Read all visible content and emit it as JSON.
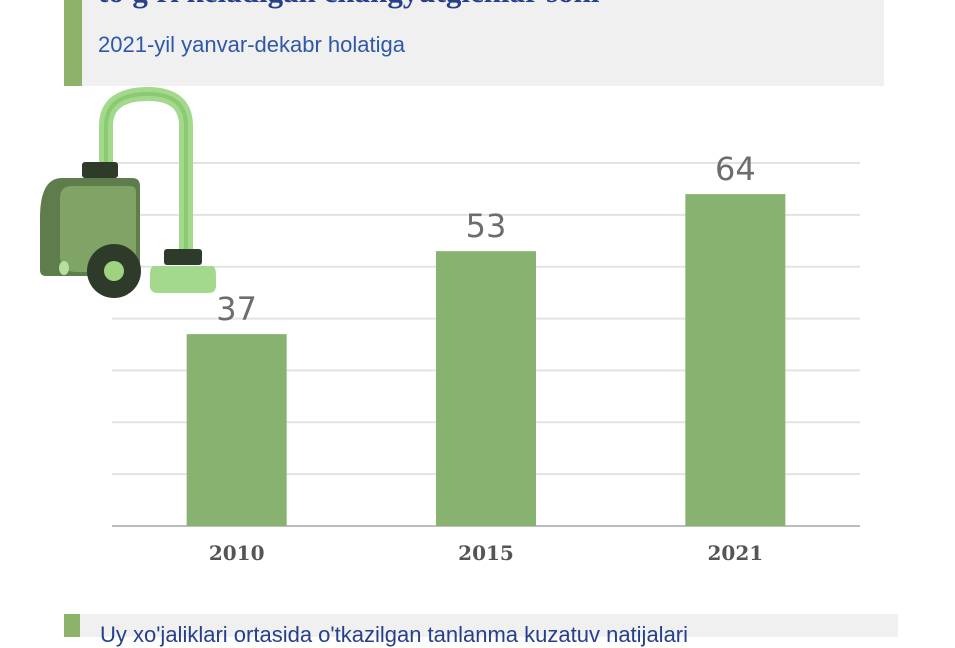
{
  "header": {
    "title": "to'g'ri keladigan changyutgichlar soni",
    "subtitle": "2021-yil yanvar-dekabr holatiga"
  },
  "footer": {
    "text": "Uy xo'jaliklari ortasida o'tkazilgan tanlanma kuzatuv natijalari"
  },
  "icon": {
    "name": "vacuum-cleaner-icon"
  },
  "colors": {
    "bar": "#88b26f",
    "accent": "#8db36b",
    "title": "#27408b",
    "subtitle": "#2f58a8",
    "header_bg": "#f0f0f0"
  },
  "chart_data": {
    "type": "bar",
    "categories": [
      "2010",
      "2015",
      "2021"
    ],
    "values": [
      37,
      53,
      64
    ],
    "ylim": [
      0,
      70
    ],
    "grid": true,
    "legend": "none",
    "data_labels": true
  }
}
